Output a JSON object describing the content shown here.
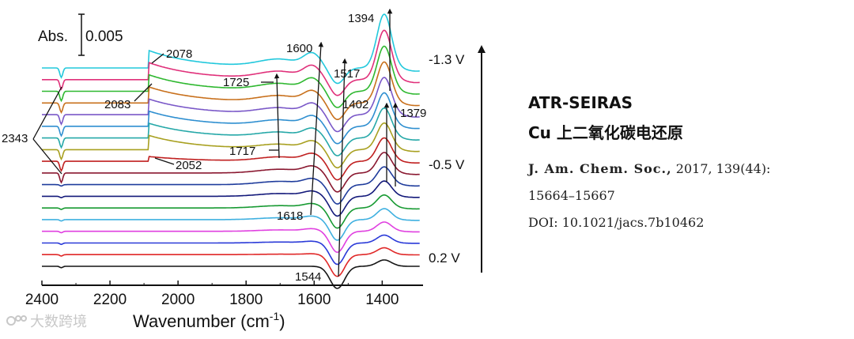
{
  "panel": {
    "title": "ATR-SEIRAS",
    "subtitle": "Cu 上二氧化碳电还原",
    "journal": "J. Am. Chem. Soc.,",
    "volume": "2017, 139(44):",
    "pages": "15664–15667",
    "doi": "DOI: 10.1021/jacs.7b10462"
  },
  "watermark": {
    "text": "大数跨境"
  },
  "chart_data": {
    "type": "line",
    "title": "",
    "xlabel": "Wavenumber (cm",
    "xlabel_sup": "-1",
    "xlabel_end": ")",
    "xlim": [
      2400,
      1280
    ],
    "x_ticks": [
      "2400",
      "2200",
      "2000",
      "1800",
      "1600",
      "1400"
    ],
    "x_tick_values": [
      2400,
      2200,
      2000,
      1800,
      1600,
      1400
    ],
    "scale_bar": {
      "label": "Abs.",
      "value": "0.005"
    },
    "potential_labels": [
      {
        "text": "-1.3 V",
        "series_index": 0
      },
      {
        "text": "-0.5 V",
        "series_index": 9
      },
      {
        "text": "0.2 V",
        "series_index": 17
      }
    ],
    "series": [
      {
        "name": "-1.3 V",
        "color": "#22c8dc"
      },
      {
        "name": "",
        "color": "#e0307a"
      },
      {
        "name": "",
        "color": "#2fb830"
      },
      {
        "name": "",
        "color": "#c8701c"
      },
      {
        "name": "",
        "color": "#7a58c8"
      },
      {
        "name": "",
        "color": "#2f8fd0"
      },
      {
        "name": "",
        "color": "#26a8a8"
      },
      {
        "name": "",
        "color": "#a8a020"
      },
      {
        "name": "",
        "color": "#c02020"
      },
      {
        "name": "-0.5 V",
        "color": "#8a1830"
      },
      {
        "name": "",
        "color": "#1f3c9c"
      },
      {
        "name": "",
        "color": "#13197a"
      },
      {
        "name": "",
        "color": "#179a32"
      },
      {
        "name": "",
        "color": "#3fb0e0"
      },
      {
        "name": "",
        "color": "#e040e0"
      },
      {
        "name": "",
        "color": "#2a3ad8"
      },
      {
        "name": "",
        "color": "#e02828"
      },
      {
        "name": "0.2 V",
        "color": "#151515"
      }
    ],
    "band_annotations": [
      {
        "label": "2343",
        "x": 2343
      },
      {
        "label": "2078",
        "x": 2078
      },
      {
        "label": "2083",
        "x": 2083
      },
      {
        "label": "2052",
        "x": 2052
      },
      {
        "label": "1725",
        "x": 1725
      },
      {
        "label": "1717",
        "x": 1717
      },
      {
        "label": "1600",
        "x": 1600
      },
      {
        "label": "1618",
        "x": 1618
      },
      {
        "label": "1544",
        "x": 1544
      },
      {
        "label": "1517",
        "x": 1517
      },
      {
        "label": "1402",
        "x": 1402
      },
      {
        "label": "1394",
        "x": 1394
      },
      {
        "label": "1379",
        "x": 1379
      }
    ]
  }
}
